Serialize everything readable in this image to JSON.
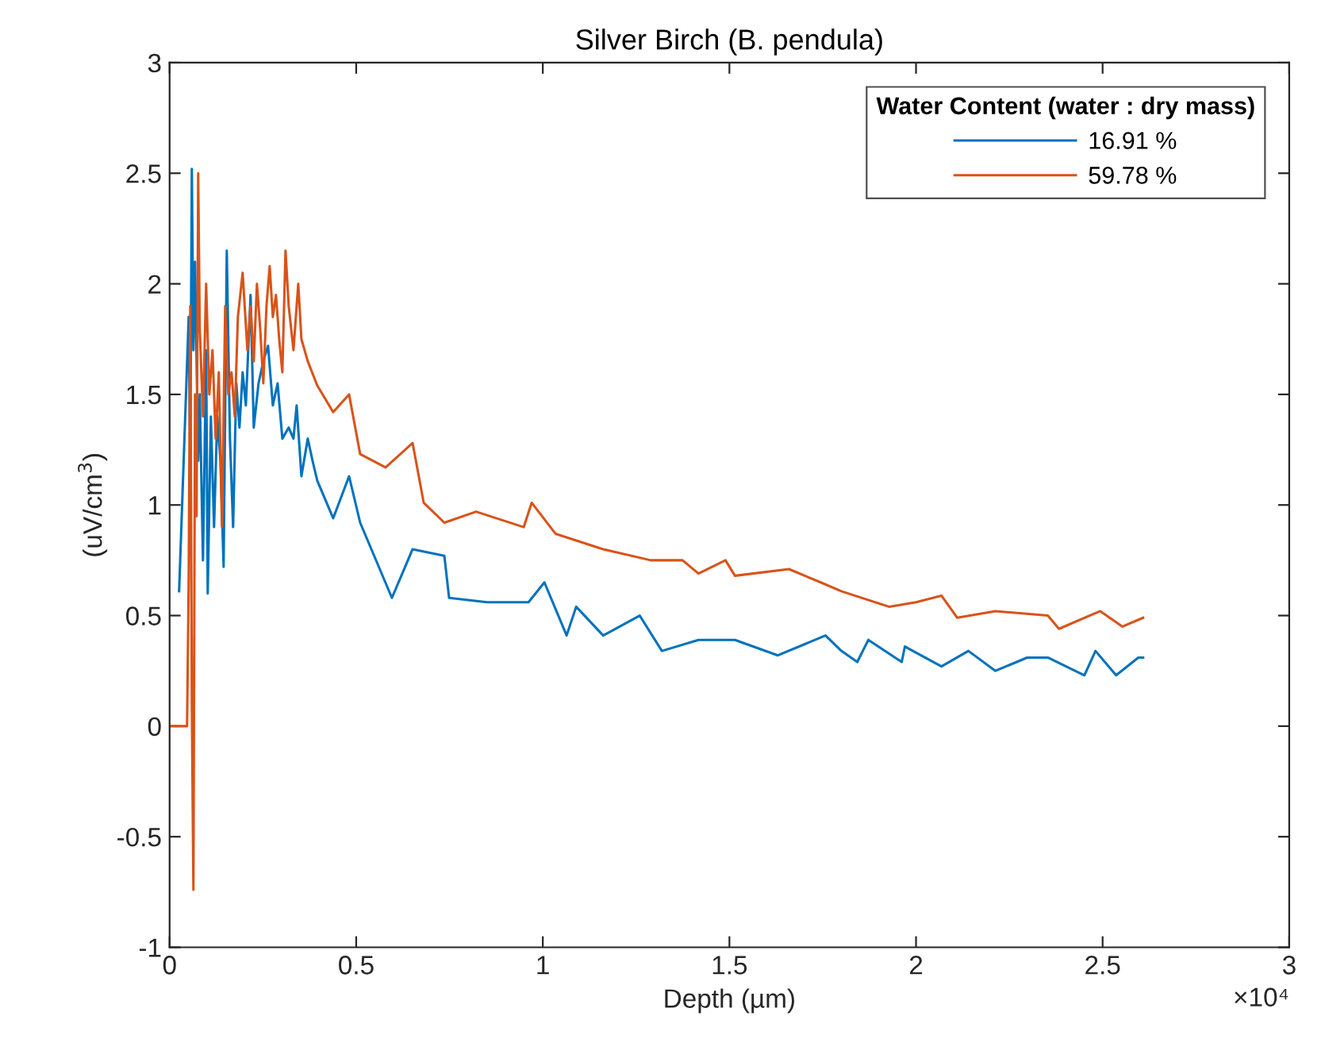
{
  "chart_data": {
    "type": "line",
    "title": "Silver Birch (B. pendula)",
    "xlabel": "Depth (µm)",
    "ylabel": "(uV/cm$^{3}$)",
    "legend_title": "Water Content (water : dry mass)",
    "legend": "top right",
    "grid": false,
    "annotations": [
      "×10⁴"
    ],
    "xlim": [
      0,
      3
    ],
    "ylim": [
      -1,
      3
    ],
    "xticks": [
      0,
      0.5,
      1,
      1.5,
      2,
      2.5,
      3
    ],
    "yticks": [
      -1,
      -0.5,
      0,
      0.5,
      1,
      1.5,
      2,
      2.5,
      3
    ],
    "series": [
      {
        "name": "16.91 %",
        "color": "#0072bd",
        "x": [
          0.0255,
          0.0511,
          0.0553,
          0.0596,
          0.0638,
          0.0681,
          0.0766,
          0.0808,
          0.0894,
          0.0979,
          0.1021,
          0.1106,
          0.1191,
          0.1277,
          0.1362,
          0.1447,
          0.1532,
          0.1617,
          0.1702,
          0.1787,
          0.1872,
          0.1957,
          0.2043,
          0.217,
          0.2255,
          0.2383,
          0.2511,
          0.2638,
          0.2766,
          0.2894,
          0.3021,
          0.3191,
          0.3319,
          0.3404,
          0.3532,
          0.3702,
          0.383,
          0.3957,
          0.4383,
          0.4809,
          0.5106,
          0.5957,
          0.6511,
          0.7362,
          0.7489,
          0.8511,
          0.9617,
          1.0043,
          1.0638,
          1.0894,
          1.1617,
          1.2596,
          1.3191,
          1.417,
          1.5149,
          1.6298,
          1.7574,
          1.8,
          1.8426,
          1.8723,
          1.9617,
          1.9702,
          2.0681,
          2.1404,
          2.2128,
          2.2979,
          2.3532,
          2.4511,
          2.4809,
          2.5362,
          2.5957,
          2.6085
        ],
        "values": [
          0.61,
          1.85,
          1.2,
          2.52,
          1.7,
          2.1,
          1.2,
          1.5,
          0.75,
          1.7,
          0.6,
          1.4,
          0.9,
          1.4,
          1.2,
          0.72,
          2.15,
          1.3,
          0.9,
          1.55,
          1.35,
          1.6,
          1.45,
          1.95,
          1.35,
          1.55,
          1.65,
          1.72,
          1.45,
          1.55,
          1.3,
          1.35,
          1.3,
          1.45,
          1.13,
          1.3,
          1.2,
          1.11,
          0.94,
          1.13,
          0.92,
          0.58,
          0.8,
          0.77,
          0.58,
          0.56,
          0.56,
          0.65,
          0.41,
          0.54,
          0.41,
          0.5,
          0.34,
          0.39,
          0.39,
          0.32,
          0.41,
          0.34,
          0.29,
          0.39,
          0.29,
          0.36,
          0.27,
          0.34,
          0.25,
          0.31,
          0.31,
          0.23,
          0.34,
          0.23,
          0.31,
          0.31
        ]
      },
      {
        "name": "59.78 %",
        "color": "#d95319",
        "x": [
          0,
          0.0468,
          0.0511,
          0.0553,
          0.0596,
          0.0638,
          0.0681,
          0.0723,
          0.0766,
          0.0808,
          0.0894,
          0.0979,
          0.1064,
          0.1149,
          0.1234,
          0.1319,
          0.1404,
          0.1489,
          0.1574,
          0.166,
          0.1745,
          0.183,
          0.1957,
          0.2085,
          0.217,
          0.2255,
          0.234,
          0.2426,
          0.2511,
          0.2596,
          0.2681,
          0.2766,
          0.2851,
          0.2936,
          0.3021,
          0.3106,
          0.3191,
          0.3319,
          0.3447,
          0.3532,
          0.3702,
          0.3957,
          0.4383,
          0.4809,
          0.5106,
          0.5787,
          0.6511,
          0.6809,
          0.7362,
          0.8213,
          0.9489,
          0.9702,
          1.034,
          1.1617,
          1.2894,
          1.3745,
          1.417,
          1.4894,
          1.5149,
          1.6596,
          1.7447,
          1.8,
          1.9277,
          2.0,
          2.0681,
          2.1106,
          2.2128,
          2.3532,
          2.383,
          2.4936,
          2.5532,
          2.6085
        ],
        "values": [
          0,
          0,
          0.66,
          1.9,
          0.1,
          -0.74,
          1.5,
          0.95,
          2.5,
          1.8,
          1.4,
          2.0,
          1.5,
          1.7,
          1.3,
          1.6,
          0.9,
          1.9,
          1.5,
          1.6,
          1.4,
          1.85,
          2.05,
          1.7,
          1.9,
          1.65,
          2.0,
          1.8,
          1.55,
          1.9,
          2.08,
          1.85,
          1.95,
          1.75,
          1.6,
          2.15,
          1.9,
          1.7,
          2.0,
          1.75,
          1.65,
          1.54,
          1.42,
          1.5,
          1.23,
          1.17,
          1.28,
          1.01,
          0.92,
          0.97,
          0.9,
          1.01,
          0.87,
          0.8,
          0.75,
          0.75,
          0.69,
          0.75,
          0.68,
          0.71,
          0.65,
          0.61,
          0.54,
          0.56,
          0.59,
          0.49,
          0.52,
          0.5,
          0.44,
          0.52,
          0.45,
          0.49
        ]
      }
    ]
  }
}
